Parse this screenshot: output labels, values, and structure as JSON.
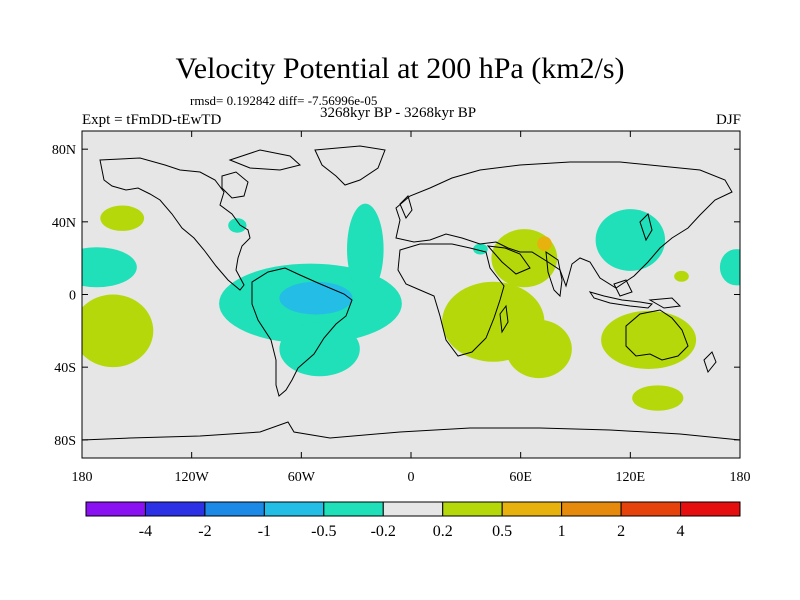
{
  "title": "Velocity Potential at 200 hPa (km2/s)",
  "stats_line": "rmsd= 0.192842 diff= -7.56996e-05",
  "left_label": "Expt = tFmDD-tEwTD",
  "center_label": "3268kyr BP - 3268kyr BP",
  "right_label": "DJF",
  "map": {
    "projection": "cylindrical-equidistant",
    "lon_range": [
      -180,
      180
    ],
    "lat_range": [
      -90,
      90
    ],
    "background_color": "#e6e6e6",
    "lat_ticks": [
      {
        "value": 80,
        "label": "80N"
      },
      {
        "value": 40,
        "label": "40N"
      },
      {
        "value": 0,
        "label": "0"
      },
      {
        "value": -40,
        "label": "40S"
      },
      {
        "value": -80,
        "label": "80S"
      }
    ],
    "lon_ticks": [
      {
        "value": -180,
        "label": "180"
      },
      {
        "value": -120,
        "label": "120W"
      },
      {
        "value": -60,
        "label": "60W"
      },
      {
        "value": 0,
        "label": "0"
      },
      {
        "value": 60,
        "label": "60E"
      },
      {
        "value": 120,
        "label": "120E"
      },
      {
        "value": 180,
        "label": "180"
      }
    ],
    "anomaly_regions": [
      {
        "name": "pacific-north-green",
        "level": "0.2 to 0.5",
        "color": "#b5d80b",
        "lon": -158,
        "lat": 42,
        "rx": 12,
        "ry": 7
      },
      {
        "name": "pacific-west-cyan",
        "level": "-0.5 to -0.2",
        "color": "#1fe0b8",
        "lon": -172,
        "lat": 15,
        "rx": 22,
        "ry": 11
      },
      {
        "name": "pacific-south-green",
        "level": "0.2 to 0.5",
        "color": "#b5d80b",
        "lon": -163,
        "lat": -20,
        "rx": 22,
        "ry": 20
      },
      {
        "name": "na-small-cyan",
        "level": "-0.5 to -0.2",
        "color": "#1fe0b8",
        "lon": -95,
        "lat": 38,
        "rx": 5,
        "ry": 4
      },
      {
        "name": "atlantic-cyan-band",
        "level": "-0.5 to -0.2",
        "color": "#1fe0b8",
        "lon": -55,
        "lat": -5,
        "rx": 50,
        "ry": 22
      },
      {
        "name": "atlantic-north-cyan-arm",
        "level": "-0.5 to -0.2",
        "color": "#1fe0b8",
        "lon": -25,
        "lat": 25,
        "rx": 10,
        "ry": 25
      },
      {
        "name": "samerica-south-cyan",
        "level": "-0.5 to -0.2",
        "color": "#1fe0b8",
        "lon": -50,
        "lat": -30,
        "rx": 22,
        "ry": 15
      },
      {
        "name": "amazon-blue",
        "level": "-1 to -0.5",
        "color": "#24bde6",
        "lon": -52,
        "lat": -2,
        "rx": 20,
        "ry": 9
      },
      {
        "name": "africa-indian-green",
        "level": "0.2 to 0.5",
        "color": "#b5d80b",
        "lon": 45,
        "lat": -15,
        "rx": 28,
        "ry": 22
      },
      {
        "name": "indian-south-green",
        "level": "0.2 to 0.5",
        "color": "#b5d80b",
        "lon": 70,
        "lat": -30,
        "rx": 18,
        "ry": 16
      },
      {
        "name": "arabia-green",
        "level": "0.2 to 0.5",
        "color": "#b5d80b",
        "lon": 62,
        "lat": 20,
        "rx": 18,
        "ry": 16
      },
      {
        "name": "arabia-orange",
        "level": "0.5 to 1",
        "color": "#e7b20e",
        "lon": 73,
        "lat": 28,
        "rx": 4,
        "ry": 4
      },
      {
        "name": "asia-east-cyan",
        "level": "-0.5 to -0.2",
        "color": "#1fe0b8",
        "lon": 120,
        "lat": 30,
        "rx": 19,
        "ry": 17
      },
      {
        "name": "india-small-cyan",
        "level": "-0.5 to -0.2",
        "color": "#1fe0b8",
        "lon": 38,
        "lat": 25,
        "rx": 4,
        "ry": 3
      },
      {
        "name": "australia-green",
        "level": "0.2 to 0.5",
        "color": "#b5d80b",
        "lon": 130,
        "lat": -25,
        "rx": 26,
        "ry": 16
      },
      {
        "name": "south-pacific-green",
        "level": "0.2 to 0.5",
        "color": "#b5d80b",
        "lon": 135,
        "lat": -57,
        "rx": 14,
        "ry": 7
      },
      {
        "name": "pacific-dateline-green",
        "level": "0.2 to 0.5",
        "color": "#b5d80b",
        "lon": 148,
        "lat": 10,
        "rx": 4,
        "ry": 3
      },
      {
        "name": "east-pacific-cyan",
        "level": "-0.5 to -0.2",
        "color": "#1fe0b8",
        "lon": 178,
        "lat": 15,
        "rx": 9,
        "ry": 10
      }
    ]
  },
  "colorbar": {
    "colors": [
      "#8a11f2",
      "#2d31e6",
      "#1b89e5",
      "#24bde6",
      "#1fe0b8",
      "#e6e6e6",
      "#b5d80b",
      "#e7b20e",
      "#e68a0d",
      "#e5430b",
      "#e60f0f"
    ],
    "labels": [
      "-4",
      "-2",
      "-1",
      "-0.5",
      "-0.2",
      "0.2",
      "0.5",
      "1",
      "2",
      "4"
    ]
  }
}
